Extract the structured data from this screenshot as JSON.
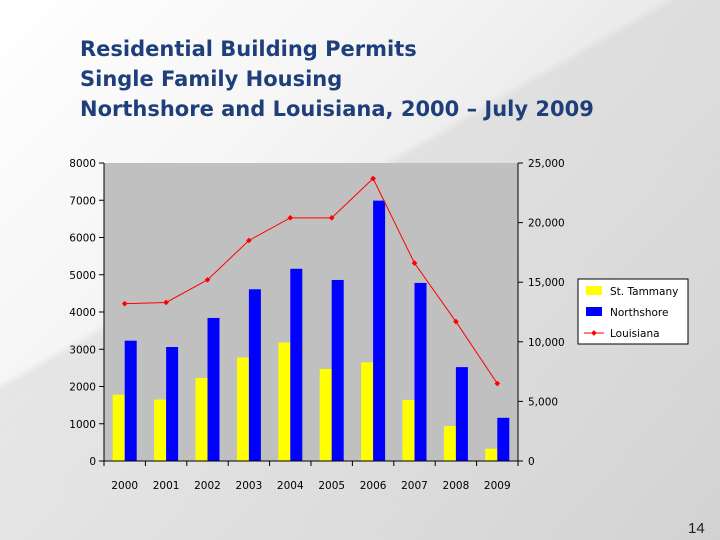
{
  "slide": {
    "title_lines": [
      "Residential Building Permits",
      "Single Family Housing",
      "Northshore and Louisiana, 2000 – July 2009"
    ],
    "page_number": "14"
  },
  "chart_data": {
    "type": "bar",
    "categories": [
      "2000",
      "2001",
      "2002",
      "2003",
      "2004",
      "2005",
      "2006",
      "2007",
      "2008",
      "2009"
    ],
    "series": [
      {
        "name": "St. Tammany",
        "type": "bar",
        "axis": "left",
        "color": "#ffff00",
        "values": [
          1780,
          1650,
          2230,
          2780,
          3180,
          2470,
          2650,
          1640,
          940,
          330
        ]
      },
      {
        "name": "Northshore",
        "type": "bar",
        "axis": "left",
        "color": "#0000ff",
        "values": [
          3230,
          3060,
          3840,
          4610,
          5160,
          4860,
          6990,
          4780,
          2520,
          1160
        ]
      },
      {
        "name": "Louisiana",
        "type": "line",
        "axis": "right",
        "color": "#ff0000",
        "values": [
          13200,
          13300,
          15200,
          18500,
          20400,
          20400,
          23700,
          16600,
          11700,
          6500
        ]
      }
    ],
    "y_left": {
      "min": 0,
      "max": 8000,
      "ticks": [
        "0",
        "1000",
        "2000",
        "3000",
        "4000",
        "5000",
        "6000",
        "7000",
        "8000"
      ]
    },
    "y_right": {
      "min": 0,
      "max": 25000,
      "ticks": [
        "0",
        "5,000",
        "10,000",
        "15,000",
        "20,000",
        "25,000"
      ]
    },
    "legend_position": "right",
    "grid": false
  }
}
